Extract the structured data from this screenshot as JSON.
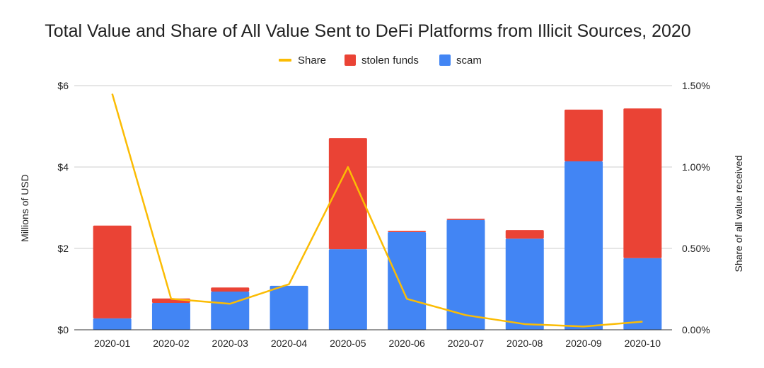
{
  "chart_data": {
    "type": "bar",
    "stacked": true,
    "title": "Total Value and Share of All Value Sent to DeFi Platforms from Illicit Sources, 2020",
    "ylabel": "Millions of USD",
    "y2label": "Share of all value received",
    "ylim": [
      0,
      6
    ],
    "y2lim": [
      0,
      1.5
    ],
    "yticks": [
      "$0",
      "$2",
      "$4",
      "$6"
    ],
    "y2ticks": [
      "0.00%",
      "0.50%",
      "1.00%",
      "1.50%"
    ],
    "grid": true,
    "legend_position": "top",
    "categories": [
      "2020-01",
      "2020-02",
      "2020-03",
      "2020-04",
      "2020-05",
      "2020-06",
      "2020-07",
      "2020-08",
      "2020-09",
      "2020-10"
    ],
    "series": [
      {
        "name": "scam",
        "type": "bar",
        "color": "#4285f4",
        "values": [
          0.28,
          0.66,
          0.94,
          1.08,
          1.98,
          2.4,
          2.7,
          2.24,
          4.14,
          1.76
        ]
      },
      {
        "name": "stolen funds",
        "type": "bar",
        "color": "#ea4335",
        "values": [
          2.28,
          0.11,
          0.1,
          0.0,
          2.73,
          0.03,
          0.03,
          0.21,
          1.27,
          3.68
        ]
      },
      {
        "name": "Share",
        "type": "line",
        "axis": "right",
        "unit": "%",
        "color": "#fbbc04",
        "values": [
          1.45,
          0.19,
          0.16,
          0.28,
          1.0,
          0.19,
          0.09,
          0.035,
          0.02,
          0.05
        ]
      }
    ],
    "legend": [
      "Share",
      "stolen funds",
      "scam"
    ]
  }
}
